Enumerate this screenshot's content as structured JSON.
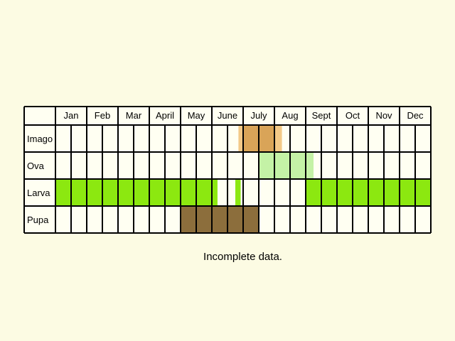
{
  "chart_data": {
    "type": "table",
    "categories": [
      "Jan",
      "Feb",
      "Mar",
      "April",
      "May",
      "June",
      "July",
      "Aug",
      "Sept",
      "Oct",
      "Nov",
      "Dec"
    ],
    "series": [
      {
        "name": "Imago",
        "color": "#E0A45A",
        "segments": [
          {
            "start": 5.85,
            "end": 7.24,
            "color": "#F3C987"
          },
          {
            "start": 6.0,
            "end": 7.0,
            "color": "#D9A458"
          }
        ]
      },
      {
        "name": "Ova",
        "color": "#C4F2A6",
        "segments": [
          {
            "start": 6.5,
            "end": 8.25,
            "color": "#C4F2A6"
          }
        ]
      },
      {
        "name": "Larva",
        "color": "#8CE810",
        "segments": [
          {
            "start": 0.0,
            "end": 5.18,
            "color": "#8CE810"
          },
          {
            "start": 5.75,
            "end": 5.92,
            "color": "#8CE810"
          },
          {
            "start": 8.0,
            "end": 12.0,
            "color": "#8CE810"
          }
        ]
      },
      {
        "name": "Pupa",
        "color": "#8C6E3C",
        "segments": [
          {
            "start": 4.0,
            "end": 6.5,
            "color": "#8C6E3C"
          }
        ]
      }
    ],
    "xlim": [
      0,
      12
    ],
    "grid": true,
    "legend": "none"
  },
  "caption": "Incomplete data."
}
